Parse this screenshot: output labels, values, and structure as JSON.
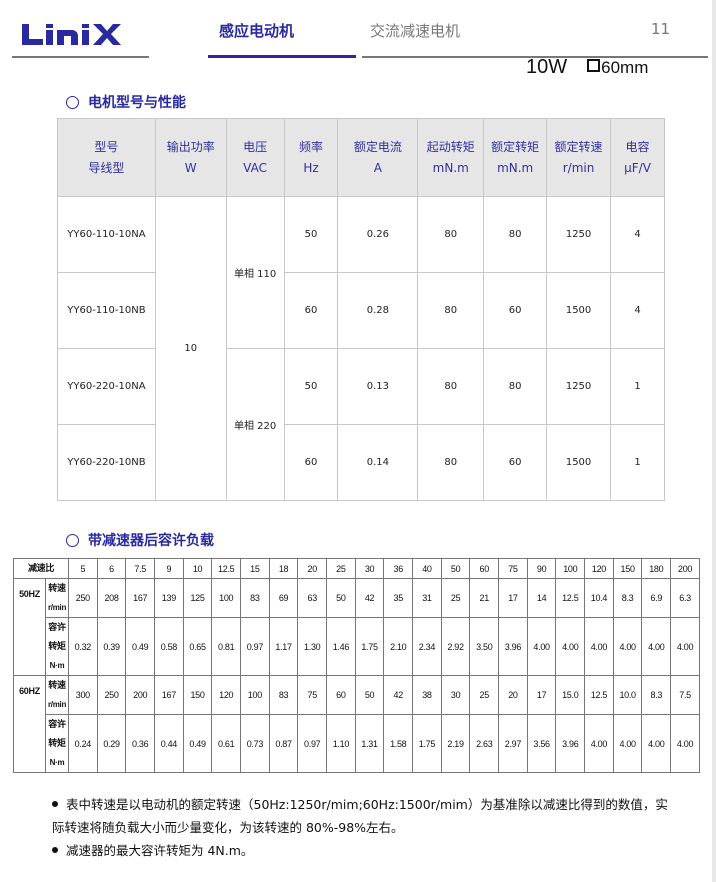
{
  "header": {
    "logo": "LINIX",
    "tabs": [
      {
        "label": "感应电动机",
        "active": true
      },
      {
        "label": "交流减速电机",
        "active": false
      }
    ],
    "page_number": "11",
    "accent_color": "#2a2aa0"
  },
  "spec": {
    "power": "10W",
    "frame": "60mm"
  },
  "section1": {
    "title": "电机型号与性能",
    "headers": [
      [
        "型号",
        "导线型"
      ],
      [
        "输出功率",
        "W"
      ],
      [
        "电压",
        "VAC"
      ],
      [
        "频率",
        "Hz"
      ],
      [
        "额定电流",
        "A"
      ],
      [
        "起动转矩",
        "mN.m"
      ],
      [
        "额定转矩",
        "mN.m"
      ],
      [
        "额定转速",
        "r/min"
      ],
      [
        "电容",
        "μF/V"
      ]
    ],
    "output_power": "10",
    "voltage_groups": [
      "单相 110",
      "单相 220"
    ],
    "rows": [
      {
        "model": "YY60-110-10NA",
        "freq": "50",
        "current": "0.26",
        "start_torque": "80",
        "rated_torque": "80",
        "speed": "1250",
        "cap": "4"
      },
      {
        "model": "YY60-110-10NB",
        "freq": "60",
        "current": "0.28",
        "start_torque": "80",
        "rated_torque": "60",
        "speed": "1500",
        "cap": "4"
      },
      {
        "model": "YY60-220-10NA",
        "freq": "50",
        "current": "0.13",
        "start_torque": "80",
        "rated_torque": "80",
        "speed": "1250",
        "cap": "1"
      },
      {
        "model": "YY60-220-10NB",
        "freq": "60",
        "current": "0.14",
        "start_torque": "80",
        "rated_torque": "60",
        "speed": "1500",
        "cap": "1"
      }
    ]
  },
  "section2": {
    "title": "带减速器后容许负载",
    "ratio_label": "减速比",
    "ratios": [
      "5",
      "6",
      "7.5",
      "9",
      "10",
      "12.5",
      "15",
      "18",
      "20",
      "25",
      "30",
      "36",
      "40",
      "50",
      "60",
      "75",
      "90",
      "100",
      "120",
      "150",
      "180",
      "200"
    ],
    "speed_label": [
      "转速",
      "r/min"
    ],
    "torque_label": [
      "容许",
      "转矩",
      "N·m"
    ],
    "groups": [
      {
        "freq": "50HZ",
        "speed": [
          "250",
          "208",
          "167",
          "139",
          "125",
          "100",
          "83",
          "69",
          "63",
          "50",
          "42",
          "35",
          "31",
          "25",
          "21",
          "17",
          "14",
          "12.5",
          "10.4",
          "8.3",
          "6.9",
          "6.3"
        ],
        "torque": [
          "0.32",
          "0.39",
          "0.49",
          "0.58",
          "0.65",
          "0.81",
          "0.97",
          "1.17",
          "1.30",
          "1.46",
          "1.75",
          "2.10",
          "2.34",
          "2.92",
          "3.50",
          "3.96",
          "4.00",
          "4.00",
          "4.00",
          "4.00",
          "4.00",
          "4.00"
        ]
      },
      {
        "freq": "60HZ",
        "speed": [
          "300",
          "250",
          "200",
          "167",
          "150",
          "120",
          "100",
          "83",
          "75",
          "60",
          "50",
          "42",
          "38",
          "30",
          "25",
          "20",
          "17",
          "15.0",
          "12.5",
          "10.0",
          "8.3",
          "7.5"
        ],
        "torque": [
          "0.24",
          "0.29",
          "0.36",
          "0.44",
          "0.49",
          "0.61",
          "0.73",
          "0.87",
          "0.97",
          "1.10",
          "1.31",
          "1.58",
          "1.75",
          "2.19",
          "2.63",
          "2.97",
          "3.56",
          "3.96",
          "4.00",
          "4.00",
          "4.00",
          "4.00"
        ]
      }
    ]
  },
  "notes": [
    "表中转速是以电动机的额定转速（50Hz:1250r/mim;60Hz:1500r/mim）为基准除以减速比得到的数值，实际转速将随负载大小而少量变化，为该转速的 80%-98%左右。",
    "减速器的最大容许转矩为 4N.m。"
  ]
}
